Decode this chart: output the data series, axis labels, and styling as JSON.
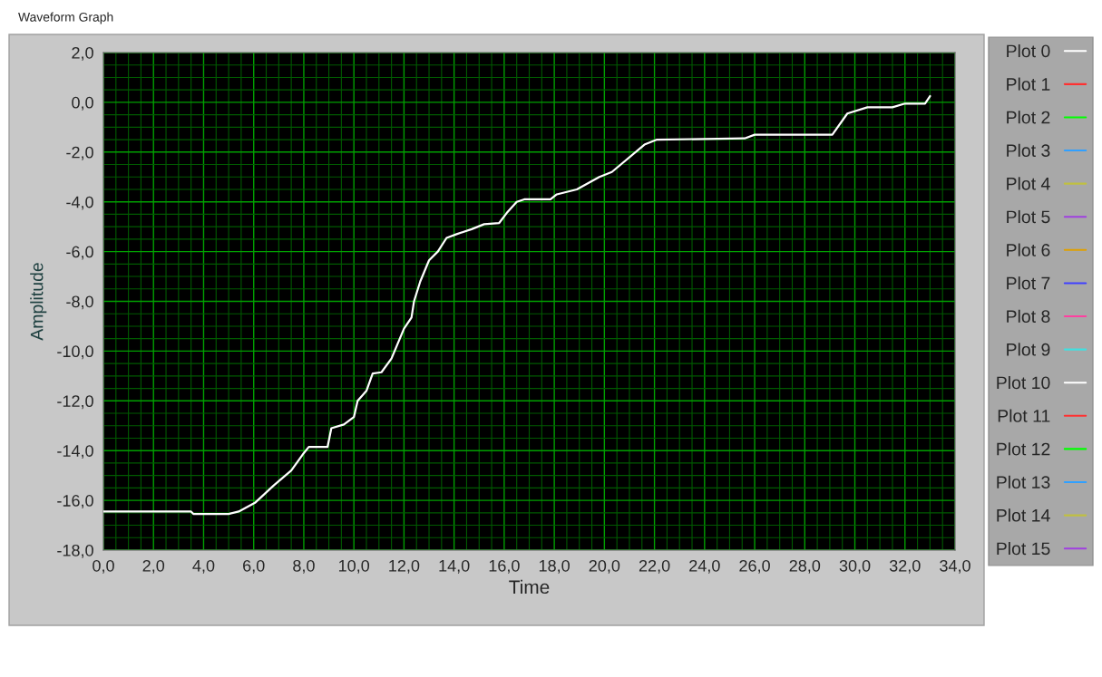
{
  "chart_data": {
    "type": "line",
    "title": "Waveform Graph",
    "xlabel": "Time",
    "ylabel": "Amplitude",
    "xlim": [
      0,
      34
    ],
    "ylim": [
      -18,
      2
    ],
    "xticks": [
      {
        "value": 0,
        "label": "0,0"
      },
      {
        "value": 2,
        "label": "2,0"
      },
      {
        "value": 4,
        "label": "4,0"
      },
      {
        "value": 6,
        "label": "6,0"
      },
      {
        "value": 8,
        "label": "8,0"
      },
      {
        "value": 10,
        "label": "10,0"
      },
      {
        "value": 12,
        "label": "12,0"
      },
      {
        "value": 14,
        "label": "14,0"
      },
      {
        "value": 16,
        "label": "16,0"
      },
      {
        "value": 18,
        "label": "18,0"
      },
      {
        "value": 20,
        "label": "20,0"
      },
      {
        "value": 22,
        "label": "22,0"
      },
      {
        "value": 24,
        "label": "24,0"
      },
      {
        "value": 26,
        "label": "26,0"
      },
      {
        "value": 28,
        "label": "28,0"
      },
      {
        "value": 30,
        "label": "30,0"
      },
      {
        "value": 32,
        "label": "32,0"
      },
      {
        "value": 34,
        "label": "34,0"
      },
      {
        "value": 0.5,
        "label": null
      },
      {
        "value": 1,
        "label": null
      },
      {
        "value": 1.5,
        "label": null
      },
      {
        "value": 2.5,
        "label": null
      },
      {
        "value": 3,
        "label": null
      },
      {
        "value": 3.5,
        "label": null
      },
      {
        "value": 4.5,
        "label": null
      },
      {
        "value": 5,
        "label": null
      },
      {
        "value": 5.5,
        "label": null
      },
      {
        "value": 6.5,
        "label": null
      },
      {
        "value": 7,
        "label": null
      },
      {
        "value": 7.5,
        "label": null
      },
      {
        "value": 8.5,
        "label": null
      },
      {
        "value": 9,
        "label": null
      },
      {
        "value": 9.5,
        "label": null
      },
      {
        "value": 10.5,
        "label": null
      },
      {
        "value": 11,
        "label": null
      },
      {
        "value": 11.5,
        "label": null
      },
      {
        "value": 12.5,
        "label": null
      },
      {
        "value": 13,
        "label": null
      },
      {
        "value": 13.5,
        "label": null
      },
      {
        "value": 14.5,
        "label": null
      },
      {
        "value": 15,
        "label": null
      },
      {
        "value": 15.5,
        "label": null
      },
      {
        "value": 16.5,
        "label": null
      },
      {
        "value": 17,
        "label": null
      },
      {
        "value": 17.5,
        "label": null
      },
      {
        "value": 18.5,
        "label": null
      },
      {
        "value": 19,
        "label": null
      },
      {
        "value": 19.5,
        "label": null
      },
      {
        "value": 20.5,
        "label": null
      },
      {
        "value": 21,
        "label": null
      },
      {
        "value": 21.5,
        "label": null
      },
      {
        "value": 22.5,
        "label": null
      },
      {
        "value": 23,
        "label": null
      },
      {
        "value": 23.5,
        "label": null
      },
      {
        "value": 24.5,
        "label": null
      },
      {
        "value": 25,
        "label": null
      },
      {
        "value": 25.5,
        "label": null
      },
      {
        "value": 26.5,
        "label": null
      },
      {
        "value": 27,
        "label": null
      },
      {
        "value": 27.5,
        "label": null
      },
      {
        "value": 28.5,
        "label": null
      },
      {
        "value": 29,
        "label": null
      },
      {
        "value": 29.5,
        "label": null
      },
      {
        "value": 30.5,
        "label": null
      },
      {
        "value": 31,
        "label": null
      },
      {
        "value": 31.5,
        "label": null
      },
      {
        "value": 32.5,
        "label": null
      },
      {
        "value": 33,
        "label": null
      },
      {
        "value": 33.5,
        "label": null
      }
    ],
    "yticks": [
      {
        "value": -18,
        "label": "-18,0"
      },
      {
        "value": -16,
        "label": "-16,0"
      },
      {
        "value": -14,
        "label": "-14,0"
      },
      {
        "value": -12,
        "label": "-12,0"
      },
      {
        "value": -10,
        "label": "-10,0"
      },
      {
        "value": -8,
        "label": "-8,0"
      },
      {
        "value": -6,
        "label": "-6,0"
      },
      {
        "value": -4,
        "label": "-4,0"
      },
      {
        "value": -2,
        "label": "-2,0"
      },
      {
        "value": 0,
        "label": "0,0"
      },
      {
        "value": 2,
        "label": "2,0"
      },
      {
        "value": -17.5,
        "label": null
      },
      {
        "value": -17,
        "label": null
      },
      {
        "value": -16.5,
        "label": null
      },
      {
        "value": -15.5,
        "label": null
      },
      {
        "value": -15,
        "label": null
      },
      {
        "value": -14.5,
        "label": null
      },
      {
        "value": -13.5,
        "label": null
      },
      {
        "value": -13,
        "label": null
      },
      {
        "value": -12.5,
        "label": null
      },
      {
        "value": -11.5,
        "label": null
      },
      {
        "value": -11,
        "label": null
      },
      {
        "value": -10.5,
        "label": null
      },
      {
        "value": -9.5,
        "label": null
      },
      {
        "value": -9,
        "label": null
      },
      {
        "value": -8.5,
        "label": null
      },
      {
        "value": -7.5,
        "label": null
      },
      {
        "value": -7,
        "label": null
      },
      {
        "value": -6.5,
        "label": null
      },
      {
        "value": -5.5,
        "label": null
      },
      {
        "value": -5,
        "label": null
      },
      {
        "value": -4.5,
        "label": null
      },
      {
        "value": -3.5,
        "label": null
      },
      {
        "value": -3,
        "label": null
      },
      {
        "value": -2.5,
        "label": null
      },
      {
        "value": -1.5,
        "label": null
      },
      {
        "value": -1,
        "label": null
      },
      {
        "value": -0.5,
        "label": null
      },
      {
        "value": 0.5,
        "label": null
      },
      {
        "value": 1,
        "label": null
      },
      {
        "value": 1.5,
        "label": null
      }
    ],
    "grid": true,
    "legend": "right",
    "marker": "none",
    "line_style": "solid",
    "series": [
      {
        "name": "Plot 0",
        "color": "#ffffff",
        "x": [
          0,
          3.5,
          3.6,
          5.0,
          5.4,
          6.05,
          6.8,
          7.5,
          8.0,
          8.2,
          8.95,
          9.1,
          9.6,
          10.0,
          10.15,
          10.5,
          10.75,
          11.1,
          11.5,
          12.0,
          12.3,
          12.4,
          12.65,
          13.0,
          13.35,
          13.7,
          14.1,
          14.7,
          15.2,
          15.8,
          16.1,
          16.5,
          16.8,
          17.85,
          18.1,
          18.9,
          19.8,
          20.3,
          21.6,
          22.1,
          25.6,
          26.0,
          29.1,
          29.7,
          30.5,
          31.5,
          32.0,
          32.8,
          33.0
        ],
        "values": [
          -16.45,
          -16.45,
          -16.55,
          -16.55,
          -16.45,
          -16.1,
          -15.4,
          -14.8,
          -14.1,
          -13.85,
          -13.85,
          -13.1,
          -12.95,
          -12.65,
          -12.0,
          -11.6,
          -10.9,
          -10.85,
          -10.3,
          -9.1,
          -8.65,
          -8.0,
          -7.2,
          -6.35,
          -6.0,
          -5.45,
          -5.3,
          -5.1,
          -4.9,
          -4.85,
          -4.45,
          -4.0,
          -3.9,
          -3.9,
          -3.7,
          -3.5,
          -3.0,
          -2.8,
          -1.7,
          -1.5,
          -1.45,
          -1.3,
          -1.3,
          -0.45,
          -0.2,
          -0.2,
          -0.05,
          -0.05,
          0.25
        ]
      },
      {
        "name": "Plot 1",
        "color": "#ff3030"
      },
      {
        "name": "Plot 2",
        "color": "#00ff00"
      },
      {
        "name": "Plot 3",
        "color": "#30a0ff"
      },
      {
        "name": "Plot 4",
        "color": "#c0c040"
      },
      {
        "name": "Plot 5",
        "color": "#a040e0"
      },
      {
        "name": "Plot 6",
        "color": "#e0a000"
      },
      {
        "name": "Plot 7",
        "color": "#4040ff"
      },
      {
        "name": "Plot 8",
        "color": "#ff40a0"
      },
      {
        "name": "Plot 9",
        "color": "#40e0e0"
      },
      {
        "name": "Plot 10",
        "color": "#ffffff"
      },
      {
        "name": "Plot 11",
        "color": "#ff3030"
      },
      {
        "name": "Plot 12",
        "color": "#00ff00"
      },
      {
        "name": "Plot 13",
        "color": "#30a0ff"
      },
      {
        "name": "Plot 14",
        "color": "#c0c040"
      },
      {
        "name": "Plot 15",
        "color": "#a040e0"
      }
    ]
  }
}
